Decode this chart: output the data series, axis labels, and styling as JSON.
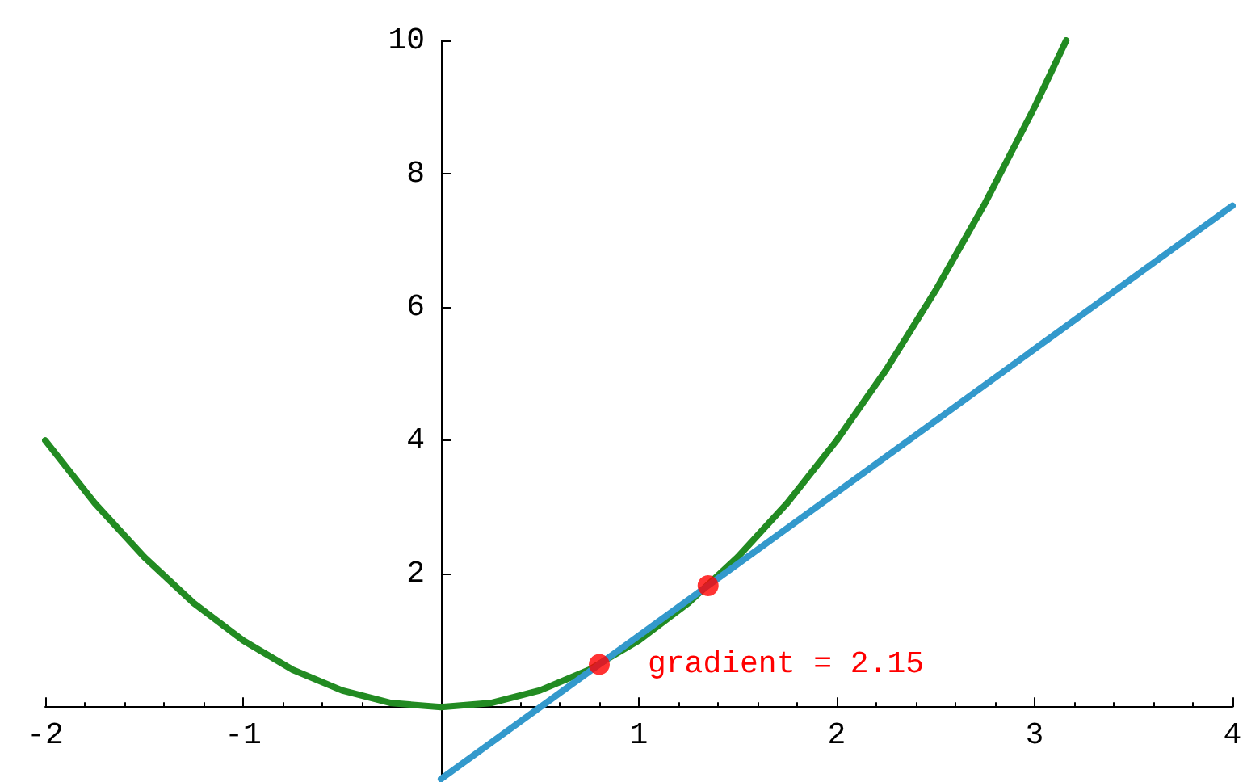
{
  "chart_data": {
    "type": "line",
    "xlim": [
      -2,
      4
    ],
    "ylim": [
      -1.1,
      10
    ],
    "xticks": [
      -2,
      -1,
      1,
      2,
      3,
      4
    ],
    "yticks": [
      2,
      4,
      6,
      8,
      10
    ],
    "grid": false,
    "series": [
      {
        "marker": "none",
        "color": "#228b22",
        "x": [
          -2,
          -1.75,
          -1.5,
          -1.25,
          -1,
          -0.75,
          -0.5,
          -0.25,
          0,
          0.25,
          0.5,
          0.75,
          1,
          1.25,
          1.5,
          1.75,
          2,
          2.25,
          2.5,
          2.75,
          3,
          3.16
        ],
        "values": [
          4,
          3.06,
          2.25,
          1.56,
          1,
          0.56,
          0.25,
          0.06,
          0,
          0.06,
          0.25,
          0.56,
          1,
          1.56,
          2.25,
          3.06,
          4,
          5.06,
          6.25,
          7.56,
          9,
          10
        ]
      },
      {
        "marker": "none",
        "color": "#3399cc",
        "x": [
          0,
          4
        ],
        "values": [
          -1.08,
          7.52
        ]
      },
      {
        "type": "scatter",
        "marker": "circle",
        "color": "#ff0000",
        "x": [
          0.8,
          1.35
        ],
        "values": [
          0.64,
          1.82
        ]
      }
    ],
    "annotations": [
      {
        "text": "gradient = 2.15",
        "x": 0.8,
        "y": 0.64
      }
    ]
  }
}
